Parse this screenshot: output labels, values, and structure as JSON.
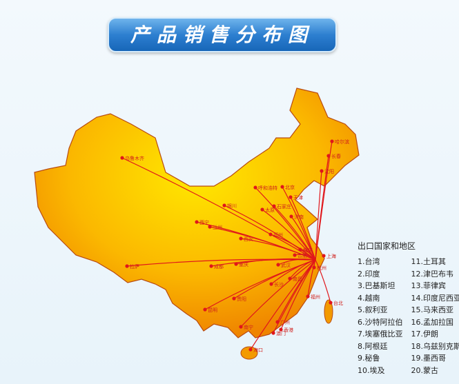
{
  "title": "产品销售分布图",
  "hub": "上海",
  "cities": [
    {
      "name": "乌鲁木齐"
    },
    {
      "name": "呼和浩特"
    },
    {
      "name": "北京"
    },
    {
      "name": "天津"
    },
    {
      "name": "银川"
    },
    {
      "name": "石家庄"
    },
    {
      "name": "太原"
    },
    {
      "name": "济南"
    },
    {
      "name": "西宁"
    },
    {
      "name": "兰州"
    },
    {
      "name": "郑州"
    },
    {
      "name": "西安"
    },
    {
      "name": "沈阳"
    },
    {
      "name": "长春"
    },
    {
      "name": "哈尔滨"
    },
    {
      "name": "上海"
    },
    {
      "name": "南京"
    },
    {
      "name": "合肥"
    },
    {
      "name": "拉萨"
    },
    {
      "name": "成都"
    },
    {
      "name": "重庆"
    },
    {
      "name": "武汉"
    },
    {
      "name": "杭州"
    },
    {
      "name": "长沙"
    },
    {
      "name": "南昌"
    },
    {
      "name": "福州"
    },
    {
      "name": "台北"
    },
    {
      "name": "贵阳"
    },
    {
      "name": "昆明"
    },
    {
      "name": "南宁"
    },
    {
      "name": "广州"
    },
    {
      "name": "香港"
    },
    {
      "name": "澳门"
    },
    {
      "name": "海口"
    }
  ],
  "legend": {
    "title": "出口国家和地区",
    "items": [
      "1.台湾",
      "2.印度",
      "3.巴基斯坦",
      "4.越南",
      "5.叙利亚",
      "6.沙特阿拉伯",
      "7.埃塞俄比亚",
      "8.阿根廷",
      "9.秘鲁",
      "10.埃及",
      "11.土耳其",
      "12.津巴布韦",
      "13.菲律宾",
      "14.印度尼西亚",
      "15.马来西亚",
      "16.孟加拉国",
      "17.伊朗",
      "18.乌兹别克斯坦",
      "19.墨西哥",
      "20.蒙古"
    ]
  },
  "colors": {
    "route": "#e0161b",
    "map_center": "#ffe400",
    "map_edge": "#f08a00",
    "border": "#b84a10",
    "banner": "#2d7fd0"
  }
}
